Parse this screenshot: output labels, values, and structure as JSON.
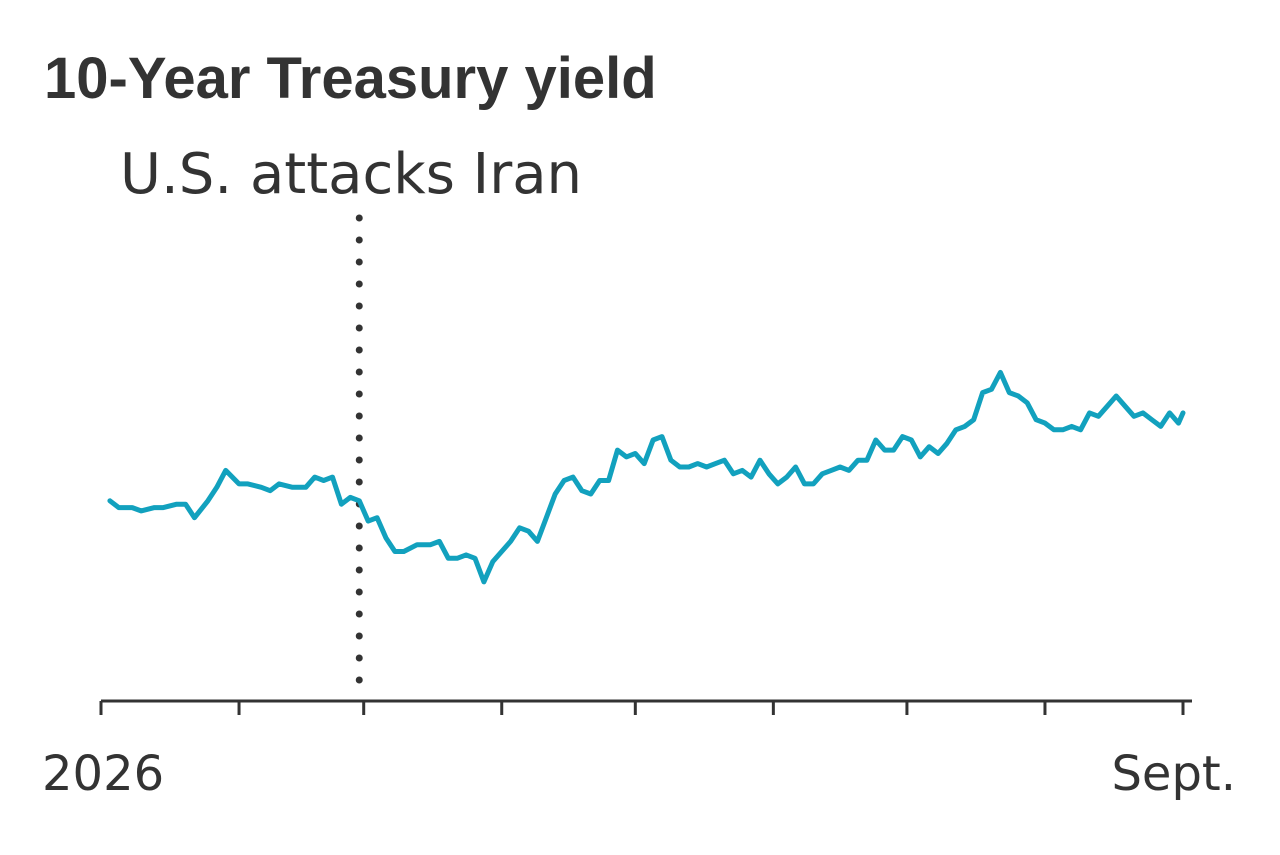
{
  "chart_data": {
    "type": "line",
    "title": "10-Year Treasury yield",
    "xlabel": "",
    "ylabel": "",
    "grid": false,
    "legend": "none",
    "x_tick_labels": [
      {
        "x": "2026-01-01",
        "label": "2026"
      },
      {
        "x": "2026-09-01",
        "label": "Sept."
      }
    ],
    "x_ticks": [
      "2026-01-01",
      "2026-02-01",
      "2026-03-01",
      "2026-04-01",
      "2026-05-01",
      "2026-06-01",
      "2026-07-01",
      "2026-08-01",
      "2026-09-01"
    ],
    "xlim": [
      "2026-01-01",
      "2026-09-01"
    ],
    "ylim": [
      0,
      100
    ],
    "annotations": [
      {
        "type": "vline",
        "x": "2026-02-28",
        "label": "U.S. attacks Iran"
      }
    ],
    "series": [
      {
        "name": "",
        "color": "#12a1be",
        "points": [
          [
            "2026-01-03",
            40
          ],
          [
            "2026-01-05",
            38
          ],
          [
            "2026-01-08",
            38
          ],
          [
            "2026-01-10",
            37
          ],
          [
            "2026-01-13",
            38
          ],
          [
            "2026-01-15",
            38
          ],
          [
            "2026-01-18",
            39
          ],
          [
            "2026-01-20",
            39
          ],
          [
            "2026-01-22",
            35
          ],
          [
            "2026-01-25",
            40
          ],
          [
            "2026-01-27",
            44
          ],
          [
            "2026-01-29",
            49
          ],
          [
            "2026-02-01",
            45
          ],
          [
            "2026-02-03",
            45
          ],
          [
            "2026-02-06",
            44
          ],
          [
            "2026-02-08",
            43
          ],
          [
            "2026-02-10",
            45
          ],
          [
            "2026-02-13",
            44
          ],
          [
            "2026-02-16",
            44
          ],
          [
            "2026-02-18",
            47
          ],
          [
            "2026-02-20",
            46
          ],
          [
            "2026-02-22",
            47
          ],
          [
            "2026-02-24",
            39
          ],
          [
            "2026-02-26",
            41
          ],
          [
            "2026-02-28",
            40
          ],
          [
            "2026-03-02",
            34
          ],
          [
            "2026-03-04",
            35
          ],
          [
            "2026-03-06",
            29
          ],
          [
            "2026-03-08",
            25
          ],
          [
            "2026-03-10",
            25
          ],
          [
            "2026-03-13",
            27
          ],
          [
            "2026-03-16",
            27
          ],
          [
            "2026-03-18",
            28
          ],
          [
            "2026-03-20",
            23
          ],
          [
            "2026-03-22",
            23
          ],
          [
            "2026-03-24",
            24
          ],
          [
            "2026-03-26",
            23
          ],
          [
            "2026-03-28",
            16
          ],
          [
            "2026-03-30",
            22
          ],
          [
            "2026-04-01",
            25
          ],
          [
            "2026-04-03",
            28
          ],
          [
            "2026-04-05",
            32
          ],
          [
            "2026-04-07",
            31
          ],
          [
            "2026-04-09",
            28
          ],
          [
            "2026-04-11",
            35
          ],
          [
            "2026-04-13",
            42
          ],
          [
            "2026-04-15",
            46
          ],
          [
            "2026-04-17",
            47
          ],
          [
            "2026-04-19",
            43
          ],
          [
            "2026-04-21",
            42
          ],
          [
            "2026-04-23",
            46
          ],
          [
            "2026-04-25",
            46
          ],
          [
            "2026-04-27",
            55
          ],
          [
            "2026-04-29",
            53
          ],
          [
            "2026-05-01",
            54
          ],
          [
            "2026-05-03",
            51
          ],
          [
            "2026-05-05",
            58
          ],
          [
            "2026-05-07",
            59
          ],
          [
            "2026-05-09",
            52
          ],
          [
            "2026-05-11",
            50
          ],
          [
            "2026-05-13",
            50
          ],
          [
            "2026-05-15",
            51
          ],
          [
            "2026-05-17",
            50
          ],
          [
            "2026-05-19",
            51
          ],
          [
            "2026-05-21",
            52
          ],
          [
            "2026-05-23",
            48
          ],
          [
            "2026-05-25",
            49
          ],
          [
            "2026-05-27",
            47
          ],
          [
            "2026-05-29",
            52
          ],
          [
            "2026-05-31",
            48
          ],
          [
            "2026-06-02",
            45
          ],
          [
            "2026-06-04",
            47
          ],
          [
            "2026-06-06",
            50
          ],
          [
            "2026-06-08",
            45
          ],
          [
            "2026-06-10",
            45
          ],
          [
            "2026-06-12",
            48
          ],
          [
            "2026-06-14",
            49
          ],
          [
            "2026-06-16",
            50
          ],
          [
            "2026-06-18",
            49
          ],
          [
            "2026-06-20",
            52
          ],
          [
            "2026-06-22",
            52
          ],
          [
            "2026-06-24",
            58
          ],
          [
            "2026-06-26",
            55
          ],
          [
            "2026-06-28",
            55
          ],
          [
            "2026-06-30",
            59
          ],
          [
            "2026-07-02",
            58
          ],
          [
            "2026-07-04",
            53
          ],
          [
            "2026-07-06",
            56
          ],
          [
            "2026-07-08",
            54
          ],
          [
            "2026-07-10",
            57
          ],
          [
            "2026-07-12",
            61
          ],
          [
            "2026-07-14",
            62
          ],
          [
            "2026-07-16",
            64
          ],
          [
            "2026-07-18",
            72
          ],
          [
            "2026-07-20",
            73
          ],
          [
            "2026-07-22",
            78
          ],
          [
            "2026-07-24",
            72
          ],
          [
            "2026-07-26",
            71
          ],
          [
            "2026-07-28",
            69
          ],
          [
            "2026-07-30",
            64
          ],
          [
            "2026-08-01",
            63
          ],
          [
            "2026-08-03",
            61
          ],
          [
            "2026-08-05",
            61
          ],
          [
            "2026-08-07",
            62
          ],
          [
            "2026-08-09",
            61
          ],
          [
            "2026-08-11",
            66
          ],
          [
            "2026-08-13",
            65
          ],
          [
            "2026-08-15",
            68
          ],
          [
            "2026-08-17",
            71
          ],
          [
            "2026-08-19",
            68
          ],
          [
            "2026-08-21",
            65
          ],
          [
            "2026-08-23",
            66
          ],
          [
            "2026-08-25",
            64
          ],
          [
            "2026-08-27",
            62
          ],
          [
            "2026-08-29",
            66
          ],
          [
            "2026-08-31",
            63
          ],
          [
            "2026-09-01",
            66
          ]
        ]
      }
    ]
  }
}
